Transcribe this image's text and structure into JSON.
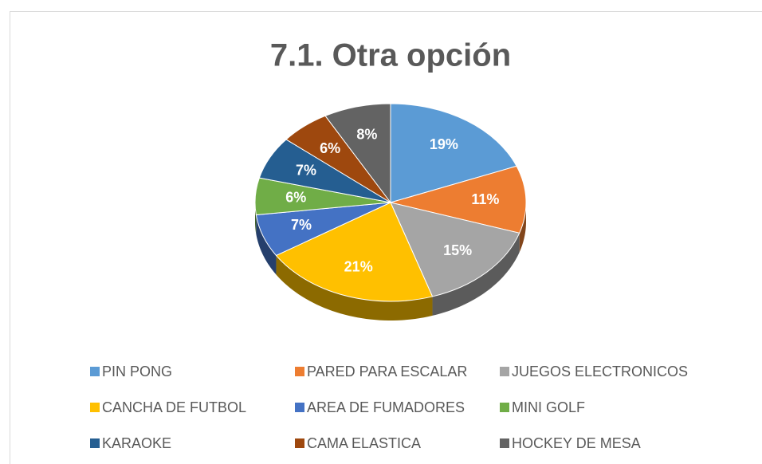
{
  "chart_data": {
    "type": "pie",
    "title": "7.1. Otra opción",
    "categories": [
      "PIN PONG",
      "PARED PARA ESCALAR",
      "JUEGOS ELECTRONICOS",
      "CANCHA DE FUTBOL",
      "AREA DE FUMADORES",
      "MINI GOLF",
      "KARAOKE",
      "CAMA ELASTICA",
      "HOCKEY DE MESA"
    ],
    "values": [
      19,
      11,
      15,
      21,
      7,
      6,
      7,
      6,
      8
    ],
    "value_labels": [
      "19%",
      "11%",
      "15%",
      "21%",
      "7%",
      "6%",
      "7%",
      "6%",
      "8%"
    ],
    "colors": [
      "#5b9bd5",
      "#ed7d31",
      "#a5a5a5",
      "#ffc000",
      "#4472c4",
      "#70ad47",
      "#255e91",
      "#9e480e",
      "#636363"
    ],
    "legend": "bottom"
  }
}
